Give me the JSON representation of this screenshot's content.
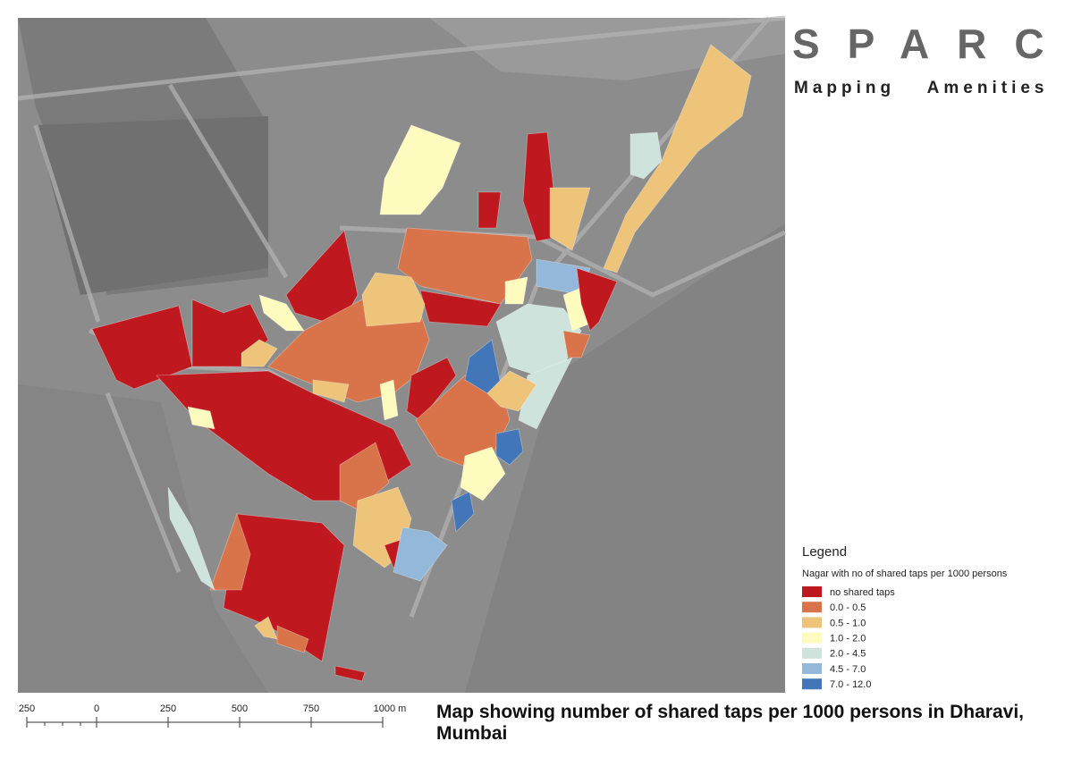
{
  "header": {
    "title": "SPARC",
    "subtitle": "Mapping Amenities"
  },
  "legend": {
    "title": "Legend",
    "subtitle": "Nagar with no of shared taps per 1000 persons",
    "items": [
      {
        "label": "no shared taps",
        "color": "#c0181f"
      },
      {
        "label": "0.0 - 0.5",
        "color": "#d9744a"
      },
      {
        "label": "0.5 - 1.0",
        "color": "#eec47a"
      },
      {
        "label": "1.0 - 2.0",
        "color": "#fdfbbd"
      },
      {
        "label": "2.0 - 4.5",
        "color": "#cde3dc"
      },
      {
        "label": "4.5 - 7.0",
        "color": "#93b8d9"
      },
      {
        "label": "7.0 - 12.0",
        "color": "#4376b8"
      }
    ]
  },
  "scale_bar": {
    "labels": [
      "250",
      "0",
      "250",
      "500",
      "750",
      "1000 m"
    ]
  },
  "caption": "Map showing number of shared taps per 1000 persons in Dharavi, Mumbai"
}
